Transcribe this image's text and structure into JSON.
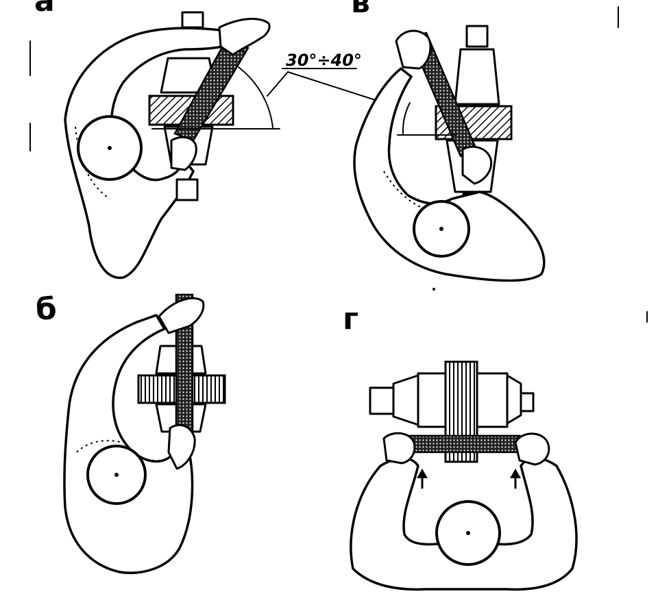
{
  "figure": {
    "panels": [
      {
        "id": "a",
        "label": "а"
      },
      {
        "id": "v",
        "label": "в"
      },
      {
        "id": "b",
        "label": "б"
      },
      {
        "id": "g",
        "label": "г"
      }
    ],
    "angle_annotation": "30°÷40°"
  },
  "colors": {
    "ink": "#000000",
    "paper": "#ffffff"
  },
  "icons": [
    "up-arrow-icon",
    "up-arrow-icon"
  ]
}
